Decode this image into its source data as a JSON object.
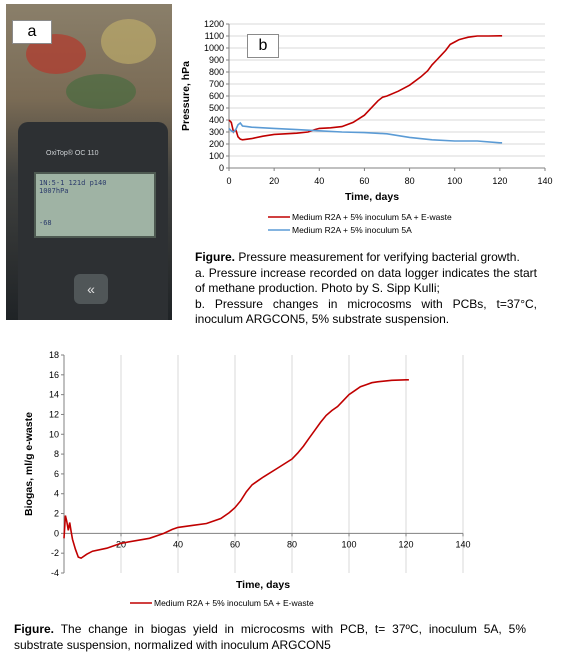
{
  "panels": {
    "a_label": "a",
    "b_label": "b"
  },
  "photo": {
    "device_brand": "OxiTop® OC 110",
    "screen_line1": "1N:5-1 121d  p140",
    "screen_line2": "1007hPa",
    "screen_line3": "-68",
    "button_glyph": "«"
  },
  "chart_data": [
    {
      "type": "line",
      "title": "",
      "xlabel": "Time, days",
      "ylabel": "Pressure, hPa",
      "xlim": [
        0,
        140
      ],
      "ylim": [
        0,
        1200
      ],
      "xticks": [
        "0",
        "20",
        "40",
        "60",
        "80",
        "100",
        "120",
        "140"
      ],
      "yticks": [
        "0",
        "100",
        "200",
        "300",
        "400",
        "500",
        "600",
        "700",
        "800",
        "900",
        "1000",
        "1100",
        "1200"
      ],
      "grid": "horizontal",
      "legend_position": "bottom",
      "series": [
        {
          "name": "Medium R2A + 5% inoculum 5A + E-waste",
          "color": "#c00000",
          "x": [
            0,
            1,
            2,
            3,
            4,
            5,
            6,
            8,
            10,
            15,
            20,
            30,
            35,
            38,
            40,
            45,
            50,
            55,
            60,
            62,
            64,
            66,
            68,
            70,
            75,
            80,
            85,
            88,
            90,
            92,
            94,
            96,
            98,
            100,
            102,
            104,
            106,
            108,
            110,
            115,
            120,
            121
          ],
          "y": [
            400,
            380,
            300,
            320,
            260,
            240,
            235,
            240,
            245,
            265,
            280,
            290,
            300,
            320,
            330,
            335,
            345,
            380,
            440,
            480,
            520,
            560,
            590,
            600,
            640,
            690,
            760,
            810,
            860,
            900,
            940,
            980,
            1030,
            1050,
            1070,
            1080,
            1090,
            1095,
            1100,
            1100,
            1102,
            1102
          ]
        },
        {
          "name": "Medium R2A + 5% inoculum 5A",
          "color": "#5b9bd5",
          "x": [
            0,
            1,
            2,
            3,
            4,
            5,
            6,
            8,
            10,
            20,
            30,
            40,
            50,
            60,
            70,
            80,
            90,
            100,
            110,
            120,
            121
          ],
          "y": [
            330,
            310,
            300,
            320,
            360,
            375,
            350,
            345,
            340,
            330,
            320,
            310,
            300,
            295,
            285,
            255,
            235,
            225,
            225,
            210,
            210
          ]
        }
      ]
    },
    {
      "type": "line",
      "title": "",
      "xlabel": "Time, days",
      "ylabel": "Biogas, ml/g e-waste",
      "xlim": [
        0,
        140
      ],
      "ylim": [
        -4,
        18
      ],
      "xticks": [
        "20",
        "40",
        "60",
        "80",
        "100",
        "120",
        "140"
      ],
      "yticks": [
        "-4",
        "-2",
        "0",
        "2",
        "4",
        "6",
        "8",
        "10",
        "12",
        "14",
        "16",
        "18"
      ],
      "grid": "vertical",
      "legend_position": "bottom",
      "series": [
        {
          "name": "Medium R2A + 5% inoculum 5A + E-waste",
          "color": "#c00000",
          "x": [
            0,
            0.5,
            1,
            1.5,
            2,
            2.5,
            3,
            4,
            5,
            6,
            8,
            10,
            15,
            20,
            30,
            35,
            38,
            40,
            45,
            50,
            55,
            58,
            60,
            62,
            64,
            66,
            68,
            70,
            75,
            80,
            82,
            84,
            86,
            88,
            90,
            92,
            94,
            96,
            98,
            100,
            102,
            104,
            106,
            108,
            110,
            115,
            120,
            121
          ],
          "y": [
            -0.5,
            1.8,
            1.2,
            0.3,
            1.1,
            0.2,
            -0.6,
            -1.6,
            -2.4,
            -2.5,
            -2.1,
            -1.8,
            -1.5,
            -1.0,
            -0.5,
            0.0,
            0.4,
            0.6,
            0.8,
            1.0,
            1.5,
            2.1,
            2.6,
            3.3,
            4.2,
            4.9,
            5.3,
            5.7,
            6.6,
            7.5,
            8.1,
            8.8,
            9.6,
            10.4,
            11.2,
            11.9,
            12.4,
            12.8,
            13.4,
            14.0,
            14.4,
            14.8,
            15.0,
            15.2,
            15.3,
            15.45,
            15.5,
            15.5
          ]
        }
      ]
    }
  ],
  "captions": {
    "fig1_label": "Figure.",
    "fig1_line1": " Pressure measurement for verifying bacterial growth.",
    "fig1_line2": "a. Pressure increase recorded on data logger indicates the start of methane production. Photo by S. Sipp Kulli;",
    "fig1_line3": "b. Pressure changes in microcosms with PCBs, t=37°C, inoculum ARGCON5, 5% substrate suspension.",
    "fig2_label": "Figure.",
    "fig2_text": " The change in biogas yield in microcosms with PCB, t= 37ºC, inoculum 5A, 5% substrate suspension, normalized with inoculum ARGCON5"
  },
  "colors": {
    "ewaste_series": "#c00000",
    "control_series": "#5b9bd5",
    "grid": "#d9d9d9",
    "axis": "#808080"
  }
}
